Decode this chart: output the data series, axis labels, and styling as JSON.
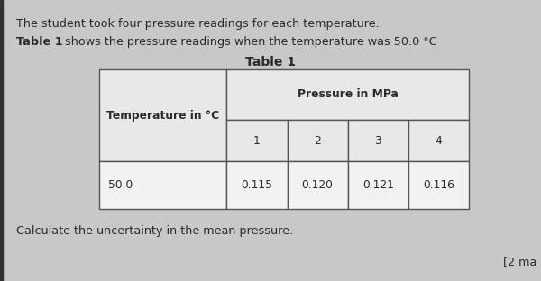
{
  "bg_color": "#c8c8c8",
  "text_color": "#2a2a2a",
  "line1": "The student took four pressure readings for each temperature.",
  "line2_bold": "Table 1",
  "line2_rest": " shows the pressure readings when the temperature was 50.0 °C",
  "table_title": "Table 1",
  "col_header_merged": "Pressure in MPa",
  "col_header_row": [
    "1",
    "2",
    "3",
    "4"
  ],
  "row_header_label": "Temperature in °C",
  "data_row_label": "50.0",
  "data_values": [
    "0.115",
    "0.120",
    "0.121",
    "0.116"
  ],
  "footer_line": "Calculate the uncertainty in the mean pressure.",
  "footer_right": "[2 ma",
  "cell_bg_header": "#e8e8e8",
  "cell_bg_data": "#f2f2f2",
  "border_color": "#555555",
  "left_bar_color": "#333333"
}
